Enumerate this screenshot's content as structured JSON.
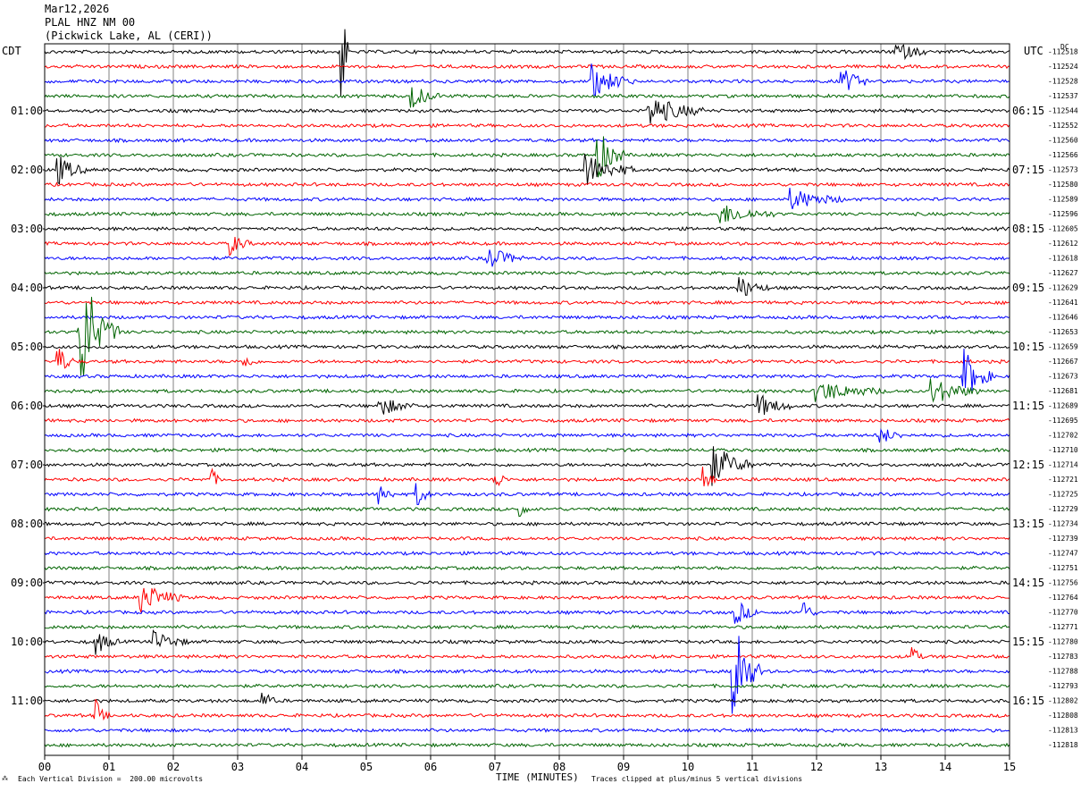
{
  "header": {
    "date": "Mar12,2026",
    "station": "PLAL HNZ NM 00",
    "location": "(Pickwick Lake, AL (CERI))"
  },
  "left_timezone": "CDT",
  "right_timezone": "UTC",
  "dc_label": "DC",
  "footer": {
    "scale_note": "Each Vertical Division =  200.00 microvolts",
    "xlabel": "TIME (MINUTES)",
    "clip_note": "Traces clipped at plus/minus 5 vertical divisions"
  },
  "colors": {
    "trace_cycle": [
      "#000000",
      "#ff0000",
      "#0000ff",
      "#006400"
    ],
    "grid": "#808080"
  },
  "chart_data": {
    "type": "line",
    "subtype": "helicorder",
    "minutes_per_line": 15,
    "xlim": [
      0,
      15
    ],
    "x_ticks": [
      "00",
      "01",
      "02",
      "03",
      "04",
      "05",
      "06",
      "07",
      "08",
      "09",
      "10",
      "11",
      "12",
      "13",
      "14",
      "15"
    ],
    "left_hour_labels": [
      "01:00",
      "02:00",
      "03:00",
      "04:00",
      "05:00",
      "06:00",
      "07:00",
      "08:00",
      "09:00",
      "10:00",
      "11:00"
    ],
    "right_hour_labels": [
      "06:15",
      "07:15",
      "08:15",
      "09:15",
      "10:15",
      "11:15",
      "12:15",
      "13:15",
      "14:15",
      "15:15",
      "16:15"
    ],
    "dc_offsets": [
      "-112518",
      "-112524",
      "-112528",
      "-112537",
      "-112544",
      "-112552",
      "-112560",
      "-112566",
      "-112573",
      "-112580",
      "-112589",
      "-112596",
      "-112605",
      "-112612",
      "-112618",
      "-112627",
      "-112629",
      "-112641",
      "-112646",
      "-112653",
      "-112659",
      "-112667",
      "-112673",
      "-112681",
      "-112689",
      "-112695",
      "-112702",
      "-112710",
      "-112714",
      "-112721",
      "-112725",
      "-112729",
      "-112734",
      "-112739",
      "-112747",
      "-112751",
      "-112756",
      "-112764",
      "-112770",
      "-112771",
      "-112780",
      "-112783",
      "-112788",
      "-112793",
      "-112802",
      "-112808",
      "-112813",
      "-112818"
    ],
    "events": [
      {
        "trace": 0,
        "minute": 4.62,
        "amp": 6.0,
        "dur": 0.05,
        "clipped": true
      },
      {
        "trace": 0,
        "minute": 13.2,
        "amp": 0.8,
        "dur": 0.5
      },
      {
        "trace": 2,
        "minute": 8.5,
        "amp": 1.3,
        "dur": 0.6
      },
      {
        "trace": 2,
        "minute": 12.4,
        "amp": 1.0,
        "dur": 0.4
      },
      {
        "trace": 3,
        "minute": 5.7,
        "amp": 1.0,
        "dur": 0.4
      },
      {
        "trace": 4,
        "minute": 9.4,
        "amp": 1.2,
        "dur": 0.8
      },
      {
        "trace": 7,
        "minute": 8.6,
        "amp": 2.0,
        "dur": 0.4
      },
      {
        "trace": 8,
        "minute": 0.2,
        "amp": 1.2,
        "dur": 0.4
      },
      {
        "trace": 8,
        "minute": 8.4,
        "amp": 1.3,
        "dur": 0.7
      },
      {
        "trace": 10,
        "minute": 11.6,
        "amp": 0.8,
        "dur": 0.8
      },
      {
        "trace": 11,
        "minute": 10.5,
        "amp": 0.8,
        "dur": 0.8
      },
      {
        "trace": 13,
        "minute": 2.9,
        "amp": 0.8,
        "dur": 0.3
      },
      {
        "trace": 14,
        "minute": 6.9,
        "amp": 0.9,
        "dur": 0.5
      },
      {
        "trace": 16,
        "minute": 10.8,
        "amp": 0.9,
        "dur": 0.4
      },
      {
        "trace": 19,
        "minute": 0.55,
        "amp": 3.0,
        "dur": 0.6,
        "clipped": true
      },
      {
        "trace": 21,
        "minute": 0.2,
        "amp": 1.3,
        "dur": 0.25
      },
      {
        "trace": 21,
        "minute": 3.1,
        "amp": 0.8,
        "dur": 0.15
      },
      {
        "trace": 22,
        "minute": 14.3,
        "amp": 2.0,
        "dur": 0.4
      },
      {
        "trace": 23,
        "minute": 12.0,
        "amp": 0.8,
        "dur": 1.0
      },
      {
        "trace": 23,
        "minute": 13.8,
        "amp": 1.0,
        "dur": 0.7
      },
      {
        "trace": 24,
        "minute": 5.2,
        "amp": 0.8,
        "dur": 0.5
      },
      {
        "trace": 24,
        "minute": 11.1,
        "amp": 0.9,
        "dur": 0.5
      },
      {
        "trace": 26,
        "minute": 13.0,
        "amp": 0.7,
        "dur": 0.3
      },
      {
        "trace": 28,
        "minute": 10.4,
        "amp": 1.5,
        "dur": 0.6
      },
      {
        "trace": 29,
        "minute": 2.6,
        "amp": 1.0,
        "dur": 0.1
      },
      {
        "trace": 29,
        "minute": 7.0,
        "amp": 1.0,
        "dur": 0.15
      },
      {
        "trace": 29,
        "minute": 10.25,
        "amp": 1.3,
        "dur": 0.15
      },
      {
        "trace": 30,
        "minute": 5.2,
        "amp": 1.1,
        "dur": 0.2
      },
      {
        "trace": 30,
        "minute": 5.8,
        "amp": 0.9,
        "dur": 0.2
      },
      {
        "trace": 31,
        "minute": 7.4,
        "amp": 0.8,
        "dur": 0.1
      },
      {
        "trace": 37,
        "minute": 1.5,
        "amp": 1.2,
        "dur": 0.6
      },
      {
        "trace": 38,
        "minute": 10.75,
        "amp": 1.0,
        "dur": 0.3
      },
      {
        "trace": 38,
        "minute": 11.8,
        "amp": 1.1,
        "dur": 0.15
      },
      {
        "trace": 40,
        "minute": 0.8,
        "amp": 1.0,
        "dur": 0.3
      },
      {
        "trace": 40,
        "minute": 1.7,
        "amp": 0.8,
        "dur": 0.5
      },
      {
        "trace": 41,
        "minute": 13.5,
        "amp": 1.2,
        "dur": 0.1
      },
      {
        "trace": 42,
        "minute": 10.7,
        "amp": 3.5,
        "dur": 0.4,
        "clipped": true
      },
      {
        "trace": 44,
        "minute": 3.4,
        "amp": 0.7,
        "dur": 0.2
      },
      {
        "trace": 45,
        "minute": 0.8,
        "amp": 1.2,
        "dur": 0.15
      }
    ]
  }
}
